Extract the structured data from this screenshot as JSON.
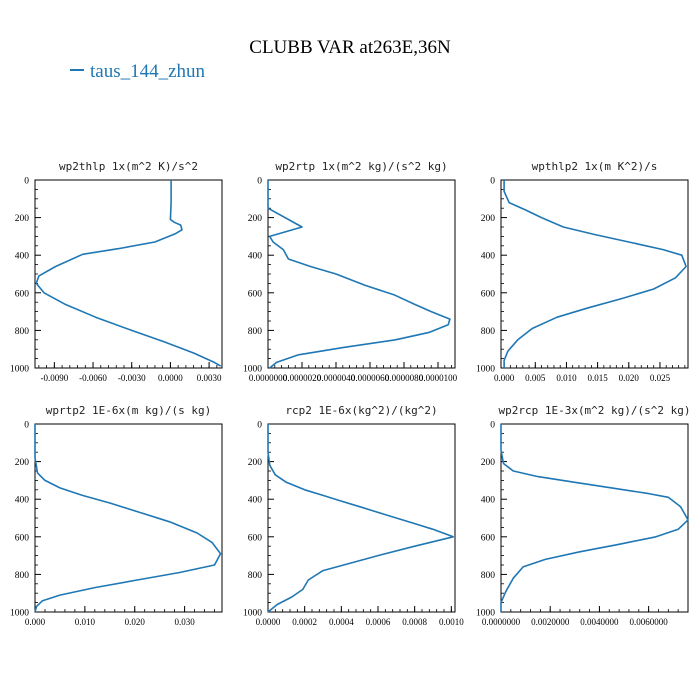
{
  "title": "CLUBB VAR at263E,36N",
  "legend": {
    "label": "taus_144_zhun",
    "color": "#1f77b4"
  },
  "line_color": "#1f77b4",
  "chart_data": [
    {
      "type": "line",
      "title": "wp2thlp  1x(m^2 K)/s^2",
      "xlim": [
        -0.0105,
        0.004
      ],
      "ylim": [
        1000,
        0
      ],
      "xticks": [
        -0.009,
        -0.006,
        -0.003,
        0.0,
        0.003
      ],
      "xtick_labels": [
        "-0.0090",
        "-0.0060",
        "-0.0030",
        "0.0000",
        "0.0030"
      ],
      "yticks": [
        0,
        200,
        400,
        600,
        800,
        1000
      ],
      "series": [
        {
          "x": [
            5e-05,
            5e-05,
            0.0,
            0.0003,
            0.0008,
            0.0009,
            0.0004,
            -0.0012,
            -0.004,
            -0.0068,
            -0.0089,
            -0.0102,
            -0.0104,
            -0.0098,
            -0.0082,
            -0.0058,
            -0.003,
            -0.0005,
            0.0018,
            0.0034,
            0.0039
          ],
          "y": [
            0,
            120,
            210,
            225,
            240,
            265,
            285,
            330,
            365,
            395,
            460,
            510,
            550,
            600,
            660,
            730,
            800,
            860,
            920,
            970,
            990
          ]
        }
      ]
    },
    {
      "type": "line",
      "title": "wp2rtp  1x(m^2 kg)/(s^2 kg)",
      "xlim": [
        0.0,
        1.1e-05
      ],
      "ylim": [
        1000,
        0
      ],
      "xticks": [
        0.0,
        2e-06,
        4e-06,
        6e-06,
        8e-06,
        1e-05
      ],
      "xtick_labels": [
        "0.0000000",
        "0.0000020",
        "0.0000040",
        "0.0000060",
        "0.0000080",
        "0.0000100"
      ],
      "yticks": [
        0,
        200,
        400,
        600,
        800,
        1000
      ],
      "series": [
        {
          "x": [
            0.0,
            0.0,
            2e-06,
            1e-07,
            3e-07,
            9e-07,
            1.2e-06,
            2.5e-06,
            4e-06,
            5.7e-06,
            7.4e-06,
            8.6e-06,
            9.6e-06,
            1.07e-05,
            1.06e-05,
            9.5e-06,
            7.5e-06,
            4.5e-06,
            1.8e-06,
            5e-07,
            1e-07
          ],
          "y": [
            0,
            150,
            250,
            300,
            330,
            370,
            420,
            460,
            500,
            560,
            610,
            660,
            700,
            740,
            770,
            810,
            850,
            890,
            930,
            970,
            1000
          ]
        }
      ]
    },
    {
      "type": "line",
      "title": "wpthlp2  1x(m K^2)/s",
      "xlim": [
        -0.0005,
        0.0295
      ],
      "ylim": [
        1000,
        0
      ],
      "xticks": [
        0.0,
        0.005,
        0.01,
        0.015,
        0.02,
        0.025
      ],
      "xtick_labels": [
        "0.000",
        "0.005",
        "0.010",
        "0.015",
        "0.020",
        "0.025"
      ],
      "yticks": [
        0,
        200,
        400,
        600,
        800,
        1000
      ],
      "series": [
        {
          "x": [
            0.0,
            0.0,
            0.0008,
            0.0035,
            0.006,
            0.0095,
            0.0145,
            0.02,
            0.0255,
            0.0285,
            0.0292,
            0.0275,
            0.024,
            0.019,
            0.0135,
            0.0085,
            0.0045,
            0.0022,
            0.0006,
            0.0,
            0.0
          ],
          "y": [
            0,
            60,
            120,
            160,
            200,
            250,
            290,
            330,
            370,
            400,
            460,
            520,
            580,
            630,
            680,
            730,
            790,
            850,
            910,
            960,
            1000
          ]
        }
      ]
    },
    {
      "type": "line",
      "title": "wprtp2  1E-6x(m kg)/(s kg)",
      "xlim": [
        0.0,
        0.0375
      ],
      "ylim": [
        1000,
        0
      ],
      "xticks": [
        0.0,
        0.01,
        0.02,
        0.03
      ],
      "xtick_labels": [
        "0.000",
        "0.010",
        "0.020",
        "0.030"
      ],
      "yticks": [
        0,
        200,
        400,
        600,
        800,
        1000
      ],
      "series": [
        {
          "x": [
            0.0,
            0.0,
            0.0005,
            0.002,
            0.005,
            0.0095,
            0.015,
            0.021,
            0.027,
            0.0325,
            0.0355,
            0.0372,
            0.036,
            0.029,
            0.0205,
            0.012,
            0.005,
            0.0015,
            0.0003,
            0.0
          ],
          "y": [
            0,
            180,
            260,
            300,
            340,
            380,
            420,
            470,
            520,
            580,
            630,
            690,
            750,
            790,
            830,
            870,
            910,
            940,
            970,
            1000
          ]
        }
      ]
    },
    {
      "type": "line",
      "title": "rcp2  1E-6x(kg^2)/(kg^2)",
      "xlim": [
        0.0,
        0.00102
      ],
      "ylim": [
        1000,
        0
      ],
      "xticks": [
        0.0,
        0.0002,
        0.0004,
        0.0006,
        0.0008,
        0.001
      ],
      "xtick_labels": [
        "0.0000",
        "0.0002",
        "0.0004",
        "0.0006",
        "0.0008",
        "0.0010"
      ],
      "yticks": [
        0,
        200,
        400,
        600,
        800,
        1000
      ],
      "series": [
        {
          "x": [
            0.0,
            0.0,
            1e-05,
            4e-05,
            0.0001,
            0.0002,
            0.0003,
            0.0004,
            0.0005,
            0.0006,
            0.0007,
            0.0008,
            0.0009,
            0.00101,
            0.0008,
            0.0006,
            0.00045,
            0.0003,
            0.00022,
            0.00019,
            0.00013,
            5e-05,
            0.0
          ],
          "y": [
            0,
            150,
            220,
            270,
            310,
            350,
            380,
            410,
            440,
            470,
            500,
            530,
            560,
            600,
            650,
            700,
            740,
            780,
            830,
            880,
            920,
            960,
            1000
          ]
        }
      ]
    },
    {
      "type": "line",
      "title": "wp2rcp  1E-3x(m^2 kg)/(s^2 kg)",
      "xlim": [
        0.0,
        0.0076
      ],
      "ylim": [
        1000,
        0
      ],
      "xticks": [
        0.0,
        0.002,
        0.004,
        0.006
      ],
      "xtick_labels": [
        "0.0000000",
        "0.0020000",
        "0.0040000",
        "0.0060000"
      ],
      "yticks": [
        0,
        200,
        400,
        600,
        800,
        1000
      ],
      "series": [
        {
          "x": [
            0.0,
            0.0,
            0.0001,
            0.0005,
            0.0015,
            0.003,
            0.0045,
            0.006,
            0.0068,
            0.0073,
            0.0076,
            0.0072,
            0.0063,
            0.0048,
            0.0032,
            0.0018,
            0.0009,
            0.0005,
            0.0002,
            0.0,
            0.0
          ],
          "y": [
            0,
            140,
            210,
            250,
            280,
            310,
            340,
            370,
            390,
            440,
            510,
            560,
            600,
            640,
            680,
            720,
            760,
            820,
            890,
            950,
            1000
          ]
        }
      ]
    }
  ]
}
